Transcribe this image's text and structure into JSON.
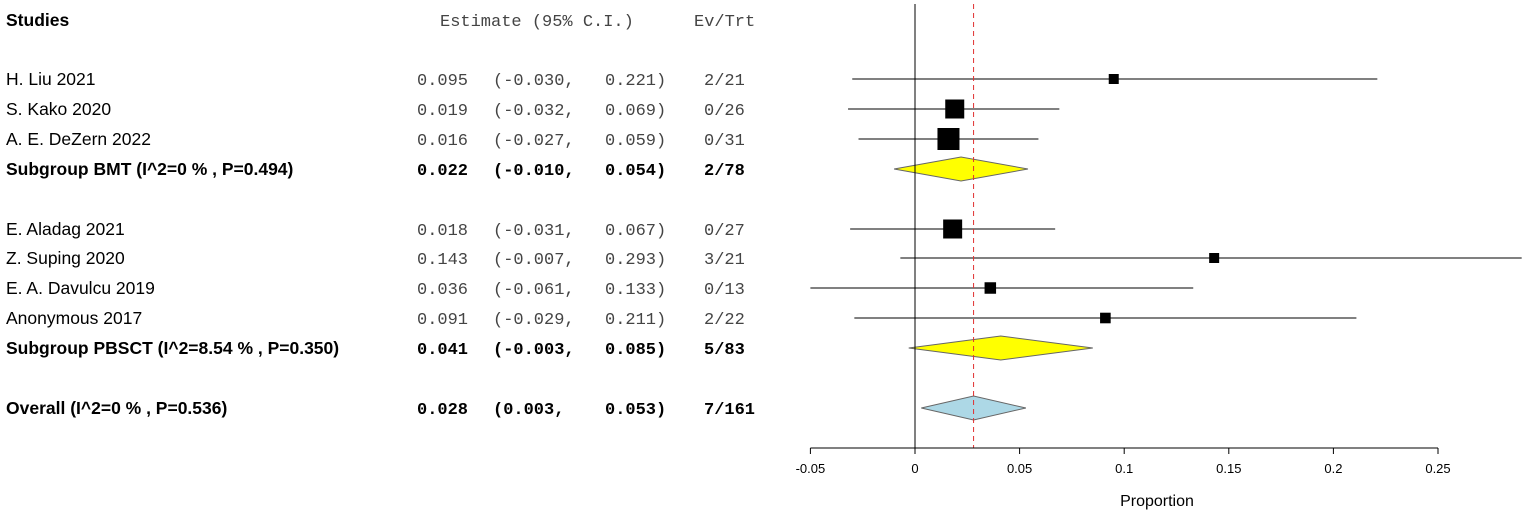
{
  "chart_data": {
    "type": "forest",
    "headers": {
      "studies": "Studies",
      "estimate": "Estimate (95% C.I.)",
      "events": "Ev/Trt"
    },
    "xlabel": "Proportion",
    "xlim": [
      -0.05,
      0.25
    ],
    "xticks": [
      "-0.05",
      "0",
      "0.05",
      "0.1",
      "0.15",
      "0.2",
      "0.25"
    ],
    "reference_line": 0.028,
    "rows": [
      {
        "kind": "study",
        "label": "H. Liu 2021",
        "est": 0.095,
        "lo": -0.03,
        "hi": 0.221,
        "ci_text": "0.095 (-0.030, 0.221)",
        "ev": "2/21",
        "weight": 1
      },
      {
        "kind": "study",
        "label": "S. Kako 2020",
        "est": 0.019,
        "lo": -0.032,
        "hi": 0.069,
        "ci_text": "0.019 (-0.032, 0.069)",
        "ev": "0/26",
        "weight": 4
      },
      {
        "kind": "study",
        "label": "A. E. DeZern 2022",
        "est": 0.016,
        "lo": -0.027,
        "hi": 0.059,
        "ci_text": "0.016 (-0.027, 0.059)",
        "ev": "0/31",
        "weight": 5
      },
      {
        "kind": "subgroup",
        "label": "Subgroup BMT (I^2=0 % , P=0.494)",
        "est": 0.022,
        "lo": -0.01,
        "hi": 0.054,
        "ci_text": "0.022 (-0.010, 0.054)",
        "ev": "2/78",
        "color": "#ffff00"
      },
      {
        "kind": "study",
        "label": "E. Aladag 2021",
        "est": 0.018,
        "lo": -0.031,
        "hi": 0.067,
        "ci_text": "0.018 (-0.031, 0.067)",
        "ev": "0/27",
        "weight": 4
      },
      {
        "kind": "study",
        "label": "Z. Suping 2020",
        "est": 0.143,
        "lo": -0.007,
        "hi": 0.293,
        "ci_text": "0.143 (-0.007, 0.293)",
        "ev": "3/21",
        "weight": 1
      },
      {
        "kind": "study",
        "label": "E. A. Davulcu 2019",
        "est": 0.036,
        "lo": -0.061,
        "hi": 0.133,
        "ci_text": "0.036 (-0.061, 0.133)",
        "ev": "0/13",
        "weight": 1.5
      },
      {
        "kind": "study",
        "label": "Anonymous 2017",
        "est": 0.091,
        "lo": -0.029,
        "hi": 0.211,
        "ci_text": "0.091 (-0.029, 0.211)",
        "ev": "2/22",
        "weight": 1.2
      },
      {
        "kind": "subgroup",
        "label": "Subgroup PBSCT (I^2=8.54 % , P=0.350)",
        "est": 0.041,
        "lo": -0.003,
        "hi": 0.085,
        "ci_text": "0.041 (-0.003, 0.085)",
        "ev": "5/83",
        "color": "#ffff00"
      },
      {
        "kind": "overall",
        "label": "Overall (I^2=0 % , P=0.536)",
        "est": 0.028,
        "lo": 0.003,
        "hi": 0.053,
        "ci_text": "0.028 (0.003, 0.053)",
        "ev": "7/161",
        "color": "#add8e6"
      }
    ]
  }
}
